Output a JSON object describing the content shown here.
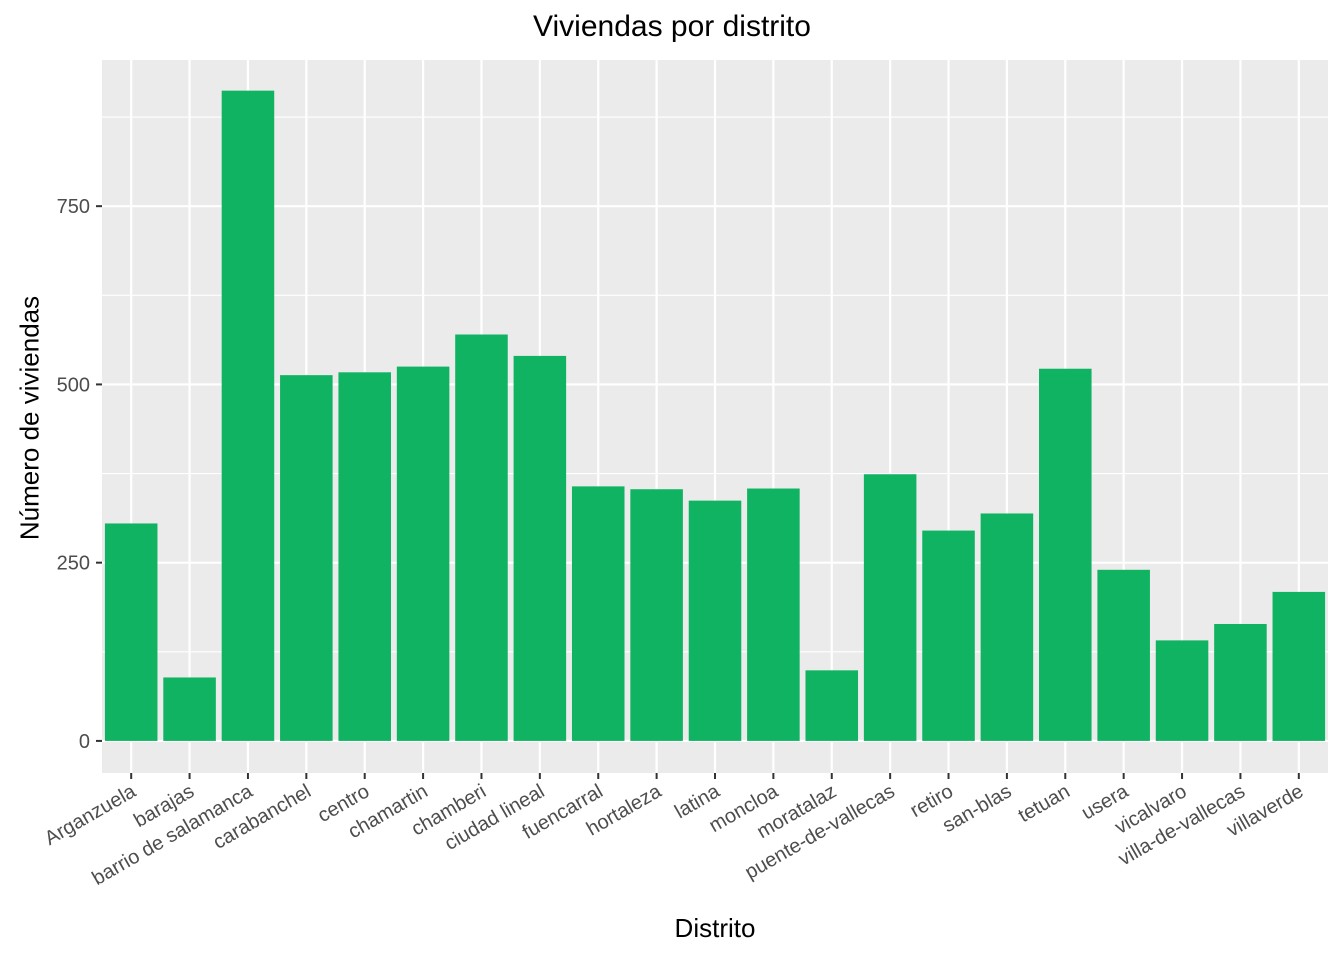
{
  "chart_data": {
    "type": "bar",
    "title": "Viviendas por distrito",
    "xlabel": "Distrito",
    "ylabel": "Número de viviendas",
    "categories": [
      "Arganzuela",
      "barajas",
      "barrio de salamanca",
      "carabanchel",
      "centro",
      "chamartin",
      "chamberi",
      "ciudad lineal",
      "fuencarral",
      "hortaleza",
      "latina",
      "moncloa",
      "moratalaz",
      "puente-de-vallecas",
      "retiro",
      "san-blas",
      "tetuan",
      "usera",
      "vicalvaro",
      "villa-de-vallecas",
      "villaverde"
    ],
    "values": [
      305,
      89,
      912,
      513,
      517,
      525,
      570,
      540,
      357,
      353,
      337,
      354,
      99,
      374,
      295,
      319,
      522,
      240,
      141,
      164,
      209
    ],
    "ylim": [
      -45,
      955
    ],
    "yticks": [
      0,
      250,
      500,
      750
    ],
    "grid": true,
    "bar_color": "#10b362",
    "panel_background": "#ebebeb",
    "grid_color": "#ffffff"
  }
}
